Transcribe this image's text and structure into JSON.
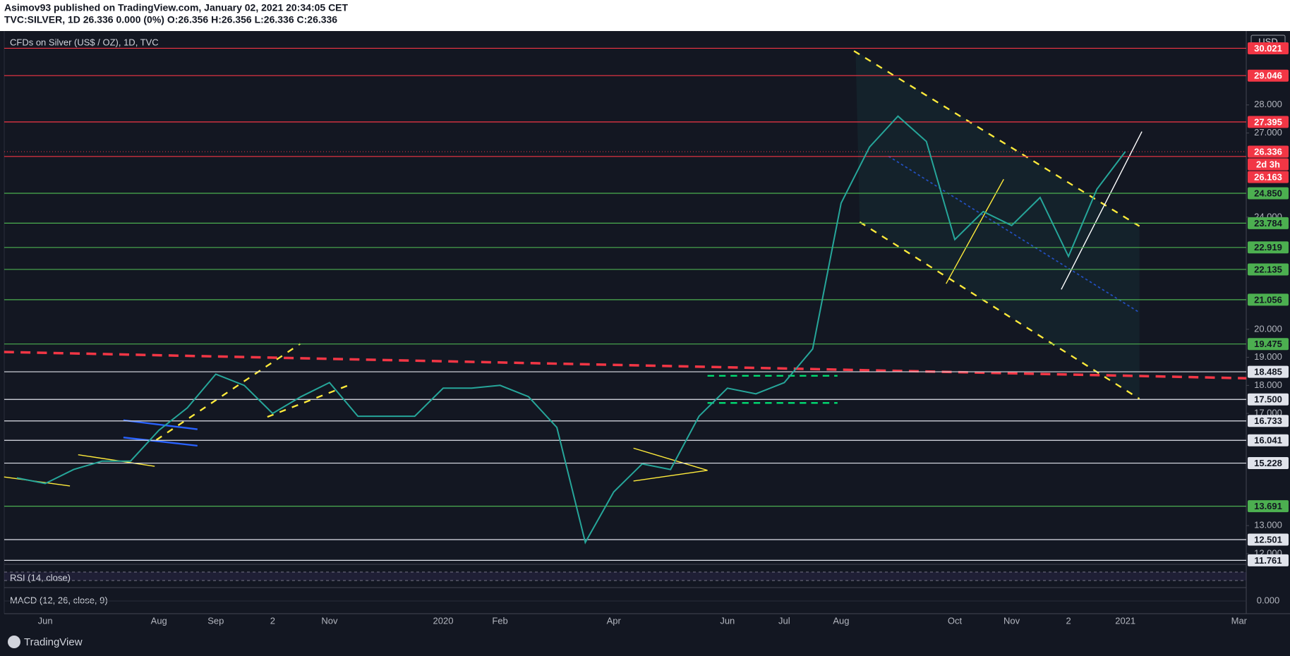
{
  "header": {
    "author_line": "Asimov93 published on TradingView.com, January 02, 2021 20:34:05 CET",
    "symbol_line": "TVC:SILVER, 1D  26.336 0.000 (0%) O:26.356 H:26.356 L:26.336 C:26.336"
  },
  "brand": "TradingView",
  "chart_data": {
    "type": "line",
    "title": "CFDs on Silver (US$ / OZ), 1D, TVC",
    "currency": "USD",
    "categories": [
      null,
      "Jun",
      null,
      null,
      null,
      "Aug",
      null,
      "Sep",
      null,
      "2",
      null,
      "Nov",
      null,
      null,
      null,
      "2020",
      null,
      "Feb",
      null,
      null,
      null,
      "Apr",
      null,
      null,
      null,
      "Jun",
      null,
      "Jul",
      null,
      "Aug",
      null,
      null,
      null,
      "Oct",
      null,
      "Nov",
      null,
      "2",
      null,
      "2021",
      null,
      null,
      null,
      "Mar"
    ],
    "values": [
      14.7,
      14.5,
      15.0,
      15.3,
      15.3,
      16.4,
      17.2,
      18.4,
      18.0,
      17.0,
      17.6,
      18.1,
      16.9,
      16.9,
      16.9,
      17.9,
      17.9,
      18.0,
      17.6,
      16.5,
      12.4,
      14.2,
      15.2,
      15.0,
      16.9,
      17.9,
      17.7,
      18.1,
      19.3,
      24.5,
      26.5,
      27.6,
      26.7,
      23.2,
      24.2,
      23.7,
      24.7,
      22.6,
      25.0,
      26.336,
      null,
      null,
      null,
      null
    ],
    "color": "#26a69a",
    "ylim": [
      11.645,
      30.51
    ],
    "yticks": [
      {
        "value": 28,
        "label": "28.000"
      },
      {
        "value": 27,
        "label": "27.000"
      },
      {
        "value": 24,
        "label": "24.000"
      },
      {
        "value": 20,
        "label": "20.000"
      },
      {
        "value": 19,
        "label": "19.000"
      },
      {
        "value": 18,
        "label": "18.000"
      },
      {
        "value": 17,
        "label": "17.000"
      },
      {
        "value": 13,
        "label": "13.000"
      },
      {
        "value": 12,
        "label": "12.000"
      }
    ],
    "levels": [
      {
        "value": 30.021,
        "label": "30.021",
        "color": "#f23645"
      },
      {
        "value": 29.046,
        "label": "29.046",
        "color": "#f23645"
      },
      {
        "value": 27.395,
        "label": "27.395",
        "color": "#f23645"
      },
      {
        "value": 26.163,
        "label": "26.163",
        "color": "#f23645"
      },
      {
        "value": 24.85,
        "label": "24.850",
        "color": "#4caf50"
      },
      {
        "value": 23.784,
        "label": "23.784",
        "color": "#4caf50"
      },
      {
        "value": 22.919,
        "label": "22.919",
        "color": "#4caf50"
      },
      {
        "value": 22.135,
        "label": "22.135",
        "color": "#4caf50"
      },
      {
        "value": 21.056,
        "label": "21.056",
        "color": "#4caf50"
      },
      {
        "value": 19.475,
        "label": "19.475",
        "color": "#4caf50"
      },
      {
        "value": 18.485,
        "label": "18.485",
        "color": "#e0e3eb"
      },
      {
        "value": 17.5,
        "label": "17.500",
        "color": "#e0e3eb"
      },
      {
        "value": 16.733,
        "label": "16.733",
        "color": "#e0e3eb"
      },
      {
        "value": 16.041,
        "label": "16.041",
        "color": "#e0e3eb"
      },
      {
        "value": 15.228,
        "label": "15.228",
        "color": "#e0e3eb"
      },
      {
        "value": 13.691,
        "label": "13.691",
        "color": "#4caf50"
      },
      {
        "value": 12.501,
        "label": "12.501",
        "color": "#e0e3eb"
      },
      {
        "value": 11.761,
        "label": "11.761",
        "color": "#e0e3eb"
      }
    ],
    "last_price": {
      "value": 26.336,
      "label": "26.336",
      "color": "#f23645"
    },
    "countdown": "2d 3h",
    "rsi_label": "RSI (14, close)",
    "macd": {
      "label": "MACD (12, 26, close, 9)",
      "yticks": [
        {
          "value": 0,
          "label": "0.000"
        }
      ]
    }
  }
}
